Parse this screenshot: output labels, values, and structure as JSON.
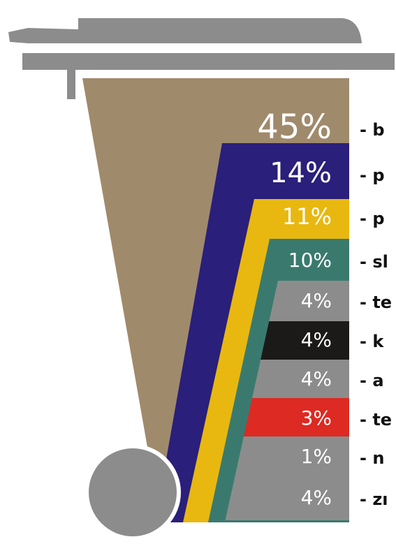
{
  "rows": [
    {
      "percent": "45%",
      "label": "- b"
    },
    {
      "percent": "14%",
      "label": "- p"
    },
    {
      "percent": "11%",
      "label": "- p"
    },
    {
      "percent": "10%",
      "label": "- sl"
    },
    {
      "percent": "4%",
      "label": "- te"
    },
    {
      "percent": "4%",
      "label": "- k"
    },
    {
      "percent": "4%",
      "label": "- a"
    },
    {
      "percent": "3%",
      "label": "- te"
    },
    {
      "percent": "1%",
      "label": "- n"
    },
    {
      "percent": "4%",
      "label": "- zı"
    }
  ]
}
